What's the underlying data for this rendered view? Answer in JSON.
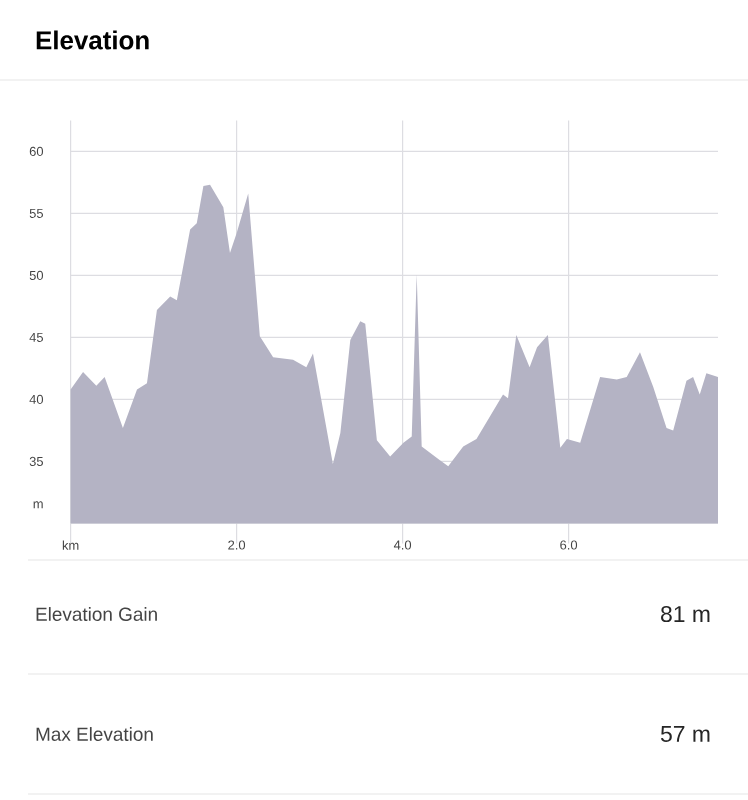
{
  "chart_data": {
    "type": "area",
    "title": "Elevation",
    "x": [
      0,
      0.15,
      0.31,
      0.41,
      0.63,
      0.8,
      0.92,
      1.04,
      1.2,
      1.28,
      1.44,
      1.52,
      1.6,
      1.68,
      1.84,
      1.92,
      2.0,
      2.14,
      2.28,
      2.44,
      2.68,
      2.84,
      2.92,
      3.16,
      3.25,
      3.37,
      3.49,
      3.55,
      3.69,
      3.85,
      4.01,
      4.11,
      4.17,
      4.23,
      4.45,
      4.55,
      4.73,
      4.89,
      5.21,
      5.27,
      5.37,
      5.53,
      5.62,
      5.75,
      5.9,
      5.98,
      6.14,
      6.38,
      6.58,
      6.7,
      6.86,
      7.02,
      7.18,
      7.26,
      7.42,
      7.5,
      7.58,
      7.66,
      7.8
    ],
    "series": [
      {
        "color": "#b4b3c4",
        "values": [
          40.8,
          42.2,
          41.1,
          41.8,
          37.7,
          40.8,
          41.3,
          47.2,
          48.3,
          48.0,
          53.7,
          54.2,
          57.2,
          57.3,
          55.5,
          51.8,
          53.4,
          56.6,
          45.1,
          43.4,
          43.2,
          42.6,
          43.7,
          34.8,
          37.3,
          44.8,
          46.3,
          46.1,
          36.7,
          35.4,
          36.5,
          37.0,
          50.1,
          36.2,
          35.1,
          34.6,
          36.2,
          36.8,
          40.4,
          40.1,
          45.2,
          42.6,
          44.2,
          45.2,
          36.1,
          36.8,
          36.5,
          41.8,
          41.6,
          41.8,
          43.8,
          41.0,
          37.7,
          37.5,
          41.5,
          41.8,
          40.4,
          42.1,
          41.8
        ]
      }
    ],
    "xlim": [
      0,
      7.8
    ],
    "ylim": [
      30,
      62.5
    ],
    "xticks": [
      {
        "value": 0,
        "label": "km"
      },
      {
        "value": 2,
        "label": "2.0"
      },
      {
        "value": 4,
        "label": "4.0"
      },
      {
        "value": 6,
        "label": "6.0"
      }
    ],
    "yticks": [
      {
        "value": 31.5,
        "label": "m"
      },
      35,
      40,
      45,
      50,
      55,
      60
    ],
    "grid": true,
    "annotations": [
      "Elevation Gain",
      "81 m",
      "Max Elevation",
      "57 m"
    ]
  }
}
